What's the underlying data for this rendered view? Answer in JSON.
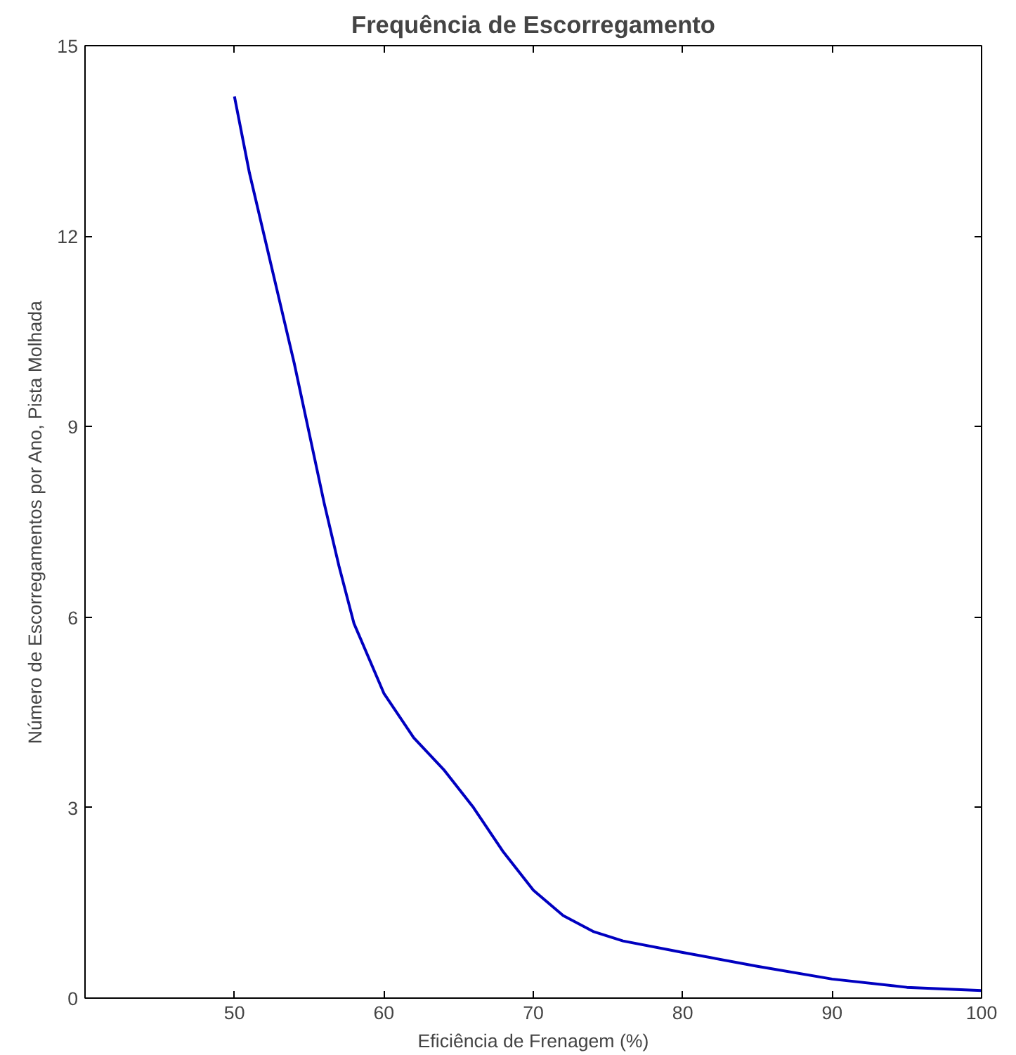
{
  "chart_data": {
    "type": "line",
    "title": "Frequência de Escorregamento",
    "xlabel": "Eficiência de Frenagem (%)",
    "ylabel": "Número de Escorregamentos por Ano, Pista Molhada",
    "x": [
      50,
      51,
      52,
      53,
      54,
      55,
      56,
      57,
      58,
      60,
      62,
      64,
      66,
      68,
      70,
      72,
      74,
      76,
      80,
      85,
      90,
      95,
      100
    ],
    "series": [
      {
        "color": "#0000c0",
        "values": [
          14.2,
          13.0,
          12.0,
          11.0,
          10.0,
          8.9,
          7.8,
          6.8,
          5.9,
          4.8,
          4.1,
          3.6,
          3.0,
          2.3,
          1.7,
          1.3,
          1.05,
          0.9,
          0.72,
          0.5,
          0.3,
          0.17,
          0.12
        ]
      }
    ],
    "xlim": [
      40,
      100
    ],
    "ylim": [
      0,
      15
    ],
    "xticks": [
      50,
      60,
      70,
      80,
      90,
      100
    ],
    "yticks": [
      0,
      3,
      6,
      9,
      12,
      15
    ],
    "grid": false,
    "line_style": "solid"
  }
}
